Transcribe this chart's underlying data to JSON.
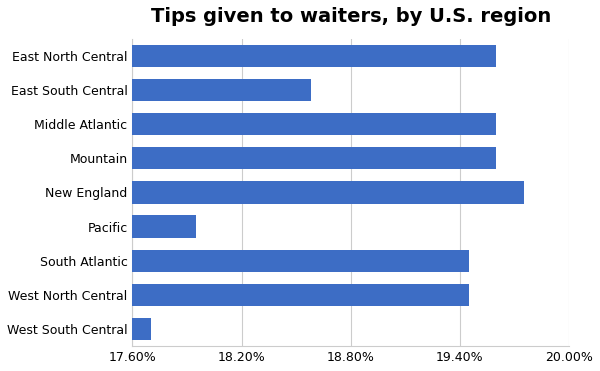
{
  "title": "Tips given to waiters, by U.S. region",
  "categories": [
    "East North Central",
    "East South Central",
    "Middle Atlantic",
    "Mountain",
    "New England",
    "Pacific",
    "South Atlantic",
    "West North Central",
    "West South Central"
  ],
  "values": [
    0.196,
    0.1858,
    0.196,
    0.196,
    0.1975,
    0.1795,
    0.1945,
    0.1945,
    0.177
  ],
  "bar_color": "#3D6DC5",
  "xlim": [
    0.176,
    0.2
  ],
  "xticks": [
    0.176,
    0.182,
    0.188,
    0.194,
    0.2
  ],
  "xtick_labels": [
    "17.60%",
    "18.20%",
    "18.80%",
    "19.40%",
    "20.00%"
  ],
  "title_fontsize": 14,
  "tick_fontsize": 9,
  "label_fontsize": 9,
  "bar_height": 0.65,
  "grid_color": "#cccccc"
}
